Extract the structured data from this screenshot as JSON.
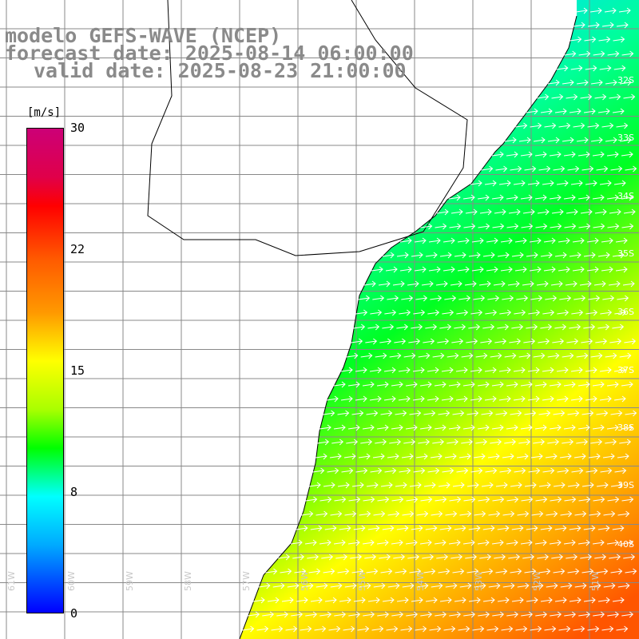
{
  "title": {
    "line1": "modelo GEFS-WAVE (NCEP)",
    "line2": "forecast date: 2025-08-14 06:00:00",
    "line3": "valid date: 2025-08-23 21:00:00"
  },
  "colorbar": {
    "units": "[m/s]",
    "ticks": [
      "30",
      "22",
      "15",
      "8",
      "0"
    ],
    "colors": [
      "#cc0077",
      "#ff0000",
      "#ff9900",
      "#ffff00",
      "#00ff00",
      "#00ffff",
      "#0000ff"
    ]
  },
  "map": {
    "lat_labels": [
      "32S",
      "33S",
      "34S",
      "35S",
      "36S",
      "37S",
      "38S",
      "39S",
      "40S"
    ],
    "lon_labels": [
      "61W",
      "60W",
      "59W",
      "58W",
      "57W",
      "56W",
      "55W",
      "54W",
      "53W",
      "52W",
      "51W"
    ],
    "field": "wind speed",
    "colors": {
      "coastline": "#000000",
      "grid": "#888888",
      "arrows": "#ffffff",
      "land": "#ffffff"
    }
  }
}
